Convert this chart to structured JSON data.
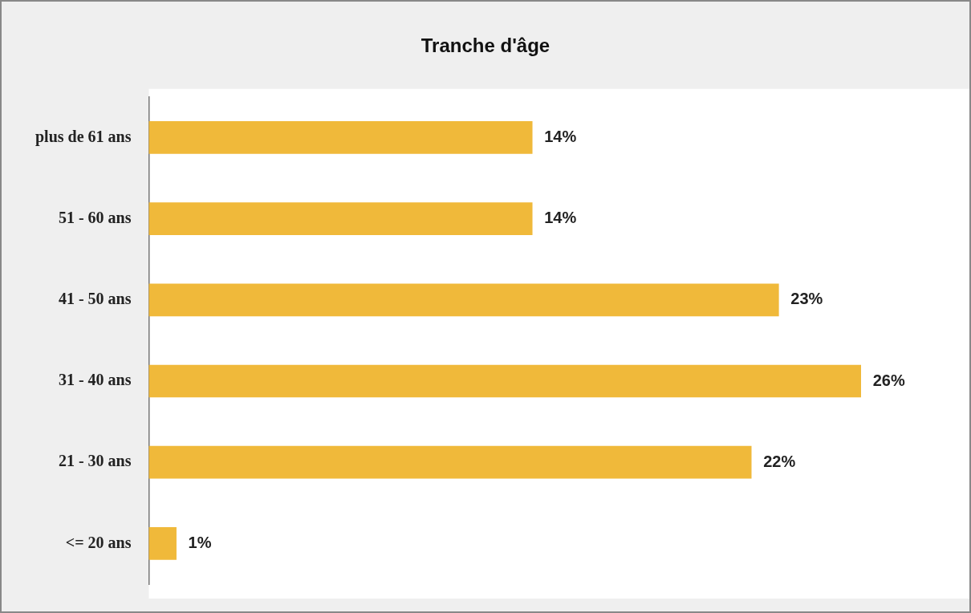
{
  "chart_data": {
    "type": "bar",
    "orientation": "horizontal",
    "title": "Tranche d'âge",
    "categories": [
      "plus de 61 ans",
      "51 - 60 ans",
      "41 - 50 ans",
      "31 - 40 ans",
      "21 - 30 ans",
      "<= 20 ans"
    ],
    "values": [
      14,
      14,
      23,
      26,
      22,
      1
    ],
    "color": "#f0b93a",
    "value_labels": [
      "14%",
      "14%",
      "23%",
      "26%",
      "22%",
      "1%"
    ],
    "legend": false
  }
}
